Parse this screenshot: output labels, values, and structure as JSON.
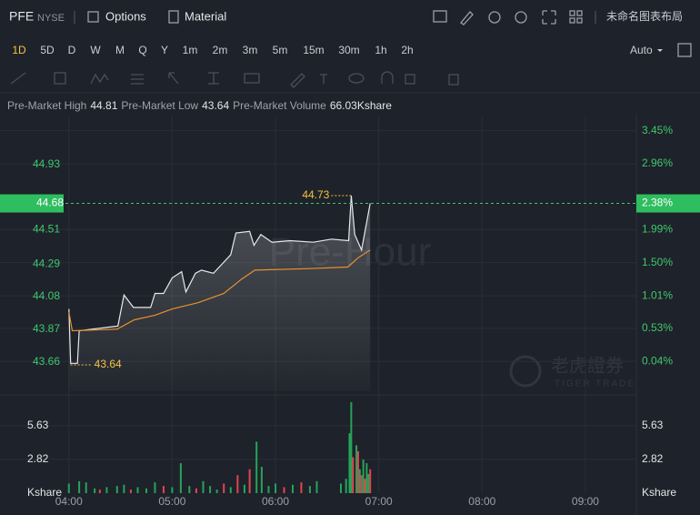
{
  "header": {
    "symbol": "PFE",
    "exchange": "NYSE",
    "options": "Options",
    "material": "Material",
    "layout": "未命名图表布局"
  },
  "timeframes": [
    "1D",
    "5D",
    "D",
    "W",
    "M",
    "Q",
    "Y",
    "1m",
    "2m",
    "3m",
    "5m",
    "15m",
    "30m",
    "1h",
    "2h"
  ],
  "scale_mode": "Auto",
  "info": [
    {
      "label": "Pre-Market High",
      "value": 44.81
    },
    {
      "label": "Pre-Market Low",
      "value": 43.64
    },
    {
      "label": "Pre-Market Volume",
      "value": "66.03Kshare"
    }
  ],
  "watermark": "Pre-Hour",
  "logo": {
    "cn": "老虎證券",
    "en": "TIGER TRADE"
  },
  "chart_data": {
    "type": "line",
    "xlim": [
      200,
      569.6
    ],
    "xticks": [
      {
        "value": 240,
        "label": "04:00"
      },
      {
        "value": 300,
        "label": "05:00"
      },
      {
        "value": 360,
        "label": "06:00"
      },
      {
        "value": 420,
        "label": "07:00"
      },
      {
        "value": 480,
        "label": "08:00"
      },
      {
        "value": 540,
        "label": "09:00"
      }
    ],
    "ylim": [
      43.47,
      45.24
    ],
    "yticks": [
      44.93,
      44.51,
      44.29,
      44.08,
      43.87,
      43.66
    ],
    "y2lim": [
      -0.4,
      3.66
    ],
    "y2ticks": [
      {
        "value": 3.45,
        "label": "3.45%"
      },
      {
        "value": 2.96,
        "label": "2.96%"
      },
      {
        "value": 1.99,
        "label": "1.99%"
      },
      {
        "value": 1.5,
        "label": "1.50%"
      },
      {
        "value": 1.01,
        "label": "1.01%"
      },
      {
        "value": 0.53,
        "label": "0.53%"
      },
      {
        "value": 0.04,
        "label": "0.04%"
      }
    ],
    "grid": true,
    "series": [
      {
        "color": "#e6e8eb",
        "x": [
          240,
          241,
          245,
          246,
          268.5,
          272,
          277.5,
          287.5,
          290,
          295,
          300,
          305.5,
          308,
          313.5,
          317,
          324,
          329,
          334,
          337,
          345,
          347.5,
          351.5,
          358,
          368.5,
          382,
          392.5,
          402.5,
          404,
          406,
          410,
          415
        ],
        "values": [
          44.0,
          43.65,
          43.65,
          43.86,
          43.89,
          44.09,
          44.01,
          44.01,
          44.1,
          44.1,
          44.2,
          44.24,
          44.11,
          44.23,
          44.25,
          44.23,
          44.29,
          44.35,
          44.49,
          44.5,
          44.41,
          44.48,
          44.43,
          44.44,
          44.43,
          44.45,
          44.44,
          44.73,
          44.48,
          44.38,
          44.68
        ]
      },
      {
        "color": "#e8912d",
        "x": [
          240,
          242,
          268,
          278,
          290,
          300,
          315,
          330,
          340,
          348,
          380,
          402,
          408,
          415
        ],
        "values": [
          43.98,
          43.86,
          43.87,
          43.93,
          43.96,
          44.0,
          44.04,
          44.1,
          44.19,
          44.25,
          44.26,
          44.27,
          44.33,
          44.38
        ]
      }
    ],
    "last_price": 44.68,
    "last_change": {
      "value": 2.38,
      "label": "2.38%"
    },
    "annotations": [
      {
        "x": 404,
        "value": 44.73
      },
      {
        "x": 241,
        "value": 43.64
      }
    ],
    "volume": {
      "ylim": [
        0,
        7.9
      ],
      "yticks": [
        5.63,
        2.82
      ],
      "unit_label": "Kshare",
      "x": [
        240,
        246,
        250,
        255,
        258,
        262,
        268,
        272,
        276,
        280,
        285,
        290,
        295,
        300,
        305,
        310,
        314,
        318,
        322,
        326,
        330,
        334,
        338,
        342,
        345,
        349,
        352,
        356,
        360,
        365,
        370,
        375,
        380,
        384,
        398,
        401,
        403,
        404,
        405,
        407,
        408,
        409,
        410,
        411,
        412,
        413,
        414,
        415
      ],
      "values": [
        0.8,
        1.0,
        0.9,
        0.4,
        0.3,
        0.5,
        0.6,
        0.7,
        0.3,
        0.5,
        0.4,
        0.9,
        0.6,
        0.5,
        2.5,
        0.6,
        0.4,
        1.0,
        0.6,
        0.3,
        0.8,
        0.5,
        1.5,
        0.7,
        2.0,
        4.3,
        2.2,
        0.6,
        0.8,
        0.5,
        0.7,
        0.9,
        0.6,
        1.0,
        0.8,
        1.2,
        5.0,
        7.6,
        3.0,
        4.0,
        3.5,
        2.0,
        1.5,
        2.8,
        1.2,
        2.5,
        1.6,
        2.0
      ],
      "colors": [
        "#27a35a",
        "#27a35a",
        "#27a35a",
        "#27a35a",
        "#e0464e",
        "#27a35a",
        "#27a35a",
        "#27a35a",
        "#e0464e",
        "#27a35a",
        "#27a35a",
        "#27a35a",
        "#e0464e",
        "#27a35a",
        "#27a35a",
        "#27a35a",
        "#e0464e",
        "#27a35a",
        "#27a35a",
        "#27a35a",
        "#e0464e",
        "#27a35a",
        "#e0464e",
        "#27a35a",
        "#e0464e",
        "#27a35a",
        "#27a35a",
        "#27a35a",
        "#27a35a",
        "#e0464e",
        "#27a35a",
        "#e0464e",
        "#27a35a",
        "#27a35a",
        "#27a35a",
        "#27a35a",
        "#27a35a",
        "#27a35a",
        "#e0464e",
        "#27a35a",
        "#e0464e",
        "#27a35a",
        "#e0464e",
        "#27a35a",
        "#e0464e",
        "#27a35a",
        "#27a35a",
        "#e0464e"
      ]
    }
  }
}
